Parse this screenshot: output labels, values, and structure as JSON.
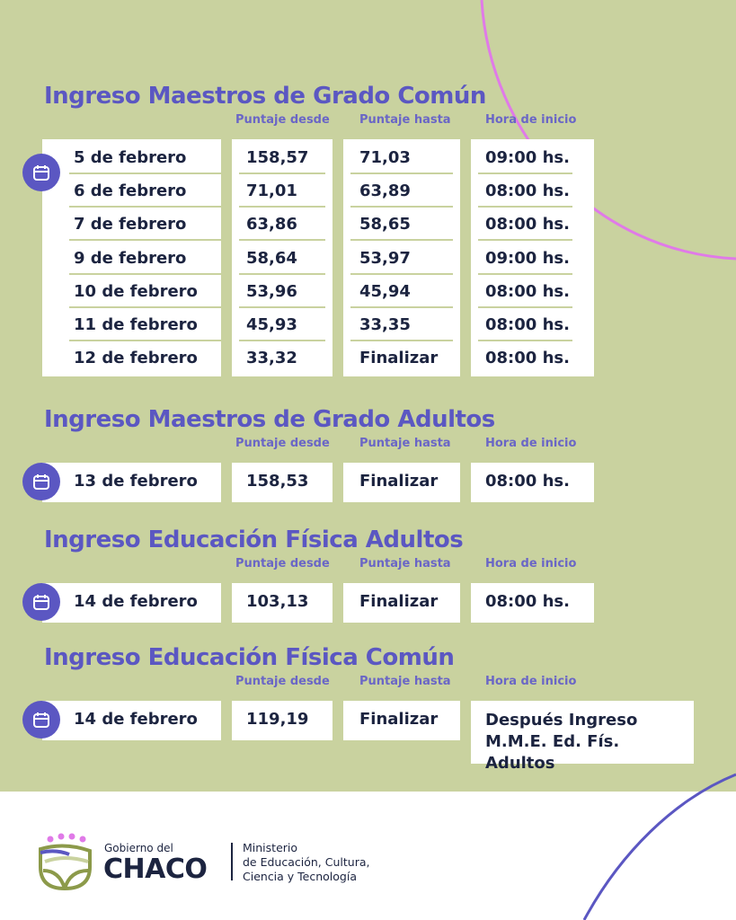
{
  "columns": {
    "from": "Puntaje desde",
    "to": "Puntaje hasta",
    "time": "Hora de inicio"
  },
  "colors": {
    "background": "#c9d29f",
    "title": "#5b57c2",
    "text": "#1c2440",
    "arc_pink": "#e07ae8",
    "arc_purple": "#5b57c2"
  },
  "sections": [
    {
      "title": "Ingreso Maestros de Grado Común",
      "rows": [
        {
          "date": "5 de febrero",
          "from": "158,57",
          "to": "71,03",
          "time": "09:00 hs."
        },
        {
          "date": "6 de febrero",
          "from": "71,01",
          "to": "63,89",
          "time": "08:00 hs."
        },
        {
          "date": "7 de febrero",
          "from": "63,86",
          "to": "58,65",
          "time": "08:00 hs."
        },
        {
          "date": "9 de febrero",
          "from": "58,64",
          "to": "53,97",
          "time": "09:00 hs."
        },
        {
          "date": "10 de febrero",
          "from": "53,96",
          "to": "45,94",
          "time": "08:00 hs."
        },
        {
          "date": "11 de febrero",
          "from": "45,93",
          "to": "33,35",
          "time": "08:00 hs."
        },
        {
          "date": "12 de febrero",
          "from": "33,32",
          "to": "Finalizar",
          "time": "08:00 hs."
        }
      ]
    },
    {
      "title": "Ingreso Maestros de Grado Adultos",
      "rows": [
        {
          "date": "13 de febrero",
          "from": "158,53",
          "to": "Finalizar",
          "time": "08:00 hs."
        }
      ]
    },
    {
      "title": "Ingreso Educación Física Adultos",
      "rows": [
        {
          "date": "14 de febrero",
          "from": "103,13",
          "to": "Finalizar",
          "time": "08:00 hs."
        }
      ]
    },
    {
      "title": "Ingreso Educación Física Común",
      "rows": [
        {
          "date": "14 de febrero",
          "from": "119,19",
          "to": "Finalizar",
          "time": "Después Ingreso M.M.E. Ed. Fís. Adultos"
        }
      ]
    }
  ],
  "footer": {
    "gov_small": "Gobierno del",
    "gov_big": "CHACO",
    "ministry": [
      "Ministerio",
      "de Educación, Cultura,",
      "Ciencia y Tecnología"
    ]
  }
}
